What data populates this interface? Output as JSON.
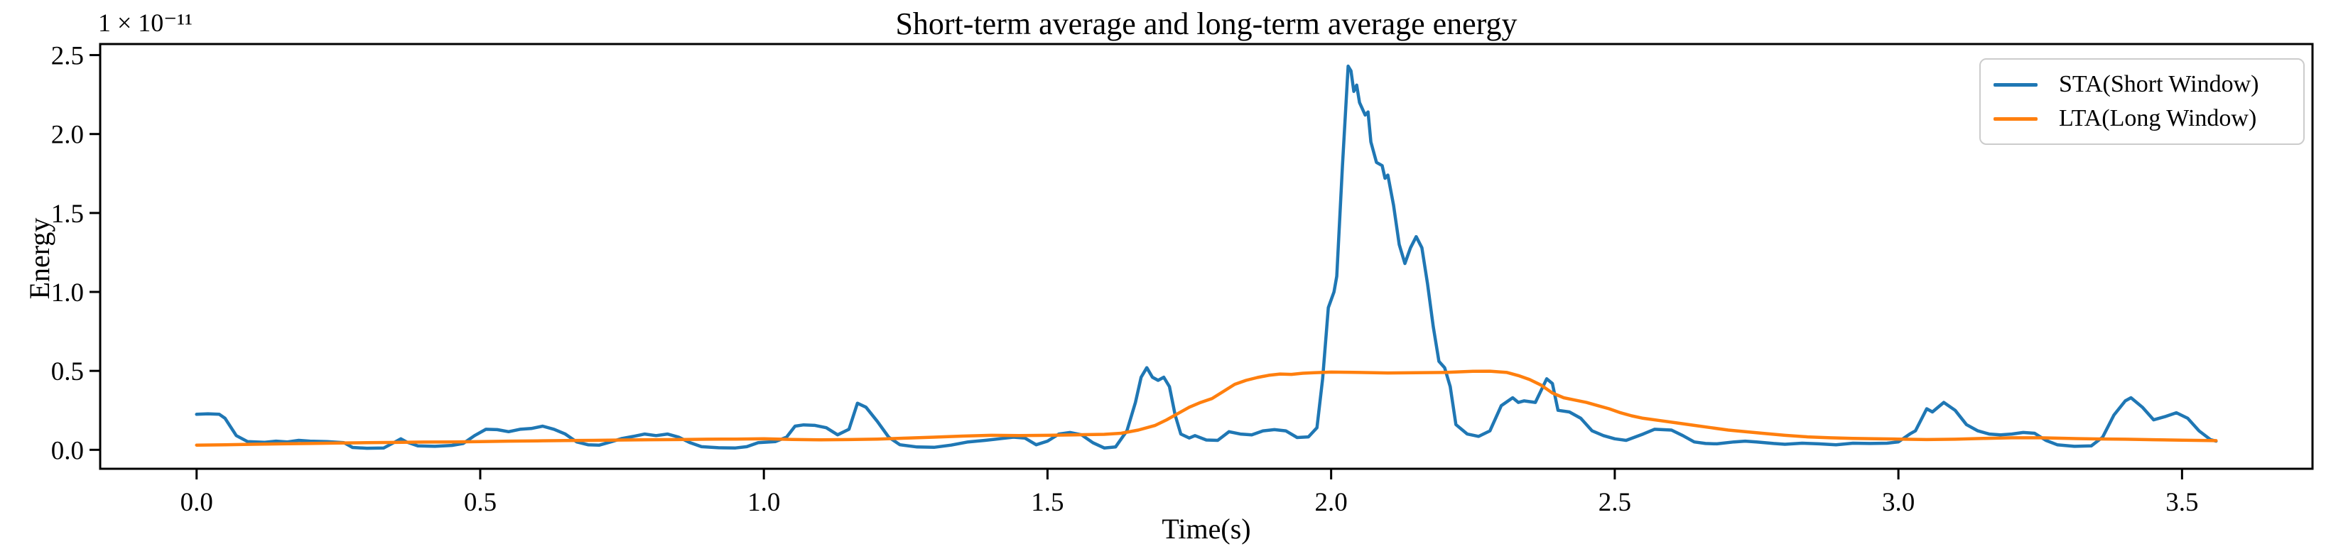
{
  "figure": {
    "background": "#ffffff",
    "spine_color": "#000000",
    "tick_label_color": "#000000"
  },
  "chart_data": {
    "type": "line",
    "title": "Short-term average and long-term average energy",
    "xlabel": "Time(s)",
    "ylabel": "Energy",
    "y_offset_text": "1 × 10⁻¹¹",
    "grid": false,
    "legend_position": "upper right",
    "xlim": [
      -0.17,
      3.73
    ],
    "ylim": [
      -0.12,
      2.57
    ],
    "x_tick_values": [
      0.0,
      0.5,
      1.0,
      1.5,
      2.0,
      2.5,
      3.0,
      3.5
    ],
    "x_tick_labels": [
      "0.0",
      "0.5",
      "1.0",
      "1.5",
      "2.0",
      "2.5",
      "3.0",
      "3.5"
    ],
    "y_tick_values": [
      0.0,
      0.5,
      1.0,
      1.5,
      2.0,
      2.5
    ],
    "y_tick_labels": [
      "0.0",
      "0.5",
      "1.0",
      "1.5",
      "2.0",
      "2.5"
    ],
    "series": [
      {
        "name": "STA(Short Window)",
        "color": "#1f77b4",
        "points": [
          [
            0.0,
            0.225
          ],
          [
            0.02,
            0.228
          ],
          [
            0.04,
            0.225
          ],
          [
            0.05,
            0.2
          ],
          [
            0.07,
            0.09
          ],
          [
            0.09,
            0.052
          ],
          [
            0.12,
            0.048
          ],
          [
            0.14,
            0.055
          ],
          [
            0.16,
            0.05
          ],
          [
            0.18,
            0.06
          ],
          [
            0.2,
            0.055
          ],
          [
            0.23,
            0.052
          ],
          [
            0.26,
            0.045
          ],
          [
            0.275,
            0.015
          ],
          [
            0.3,
            0.01
          ],
          [
            0.33,
            0.012
          ],
          [
            0.35,
            0.05
          ],
          [
            0.36,
            0.07
          ],
          [
            0.37,
            0.05
          ],
          [
            0.39,
            0.025
          ],
          [
            0.42,
            0.022
          ],
          [
            0.45,
            0.028
          ],
          [
            0.47,
            0.04
          ],
          [
            0.49,
            0.09
          ],
          [
            0.51,
            0.13
          ],
          [
            0.53,
            0.128
          ],
          [
            0.55,
            0.115
          ],
          [
            0.57,
            0.13
          ],
          [
            0.59,
            0.135
          ],
          [
            0.61,
            0.15
          ],
          [
            0.63,
            0.13
          ],
          [
            0.65,
            0.1
          ],
          [
            0.67,
            0.05
          ],
          [
            0.69,
            0.032
          ],
          [
            0.71,
            0.03
          ],
          [
            0.73,
            0.05
          ],
          [
            0.75,
            0.072
          ],
          [
            0.77,
            0.085
          ],
          [
            0.79,
            0.1
          ],
          [
            0.81,
            0.09
          ],
          [
            0.83,
            0.1
          ],
          [
            0.85,
            0.08
          ],
          [
            0.87,
            0.045
          ],
          [
            0.89,
            0.02
          ],
          [
            0.92,
            0.013
          ],
          [
            0.95,
            0.012
          ],
          [
            0.97,
            0.02
          ],
          [
            0.99,
            0.045
          ],
          [
            1.02,
            0.052
          ],
          [
            1.04,
            0.08
          ],
          [
            1.055,
            0.15
          ],
          [
            1.07,
            0.158
          ],
          [
            1.09,
            0.155
          ],
          [
            1.11,
            0.14
          ],
          [
            1.13,
            0.095
          ],
          [
            1.15,
            0.13
          ],
          [
            1.165,
            0.295
          ],
          [
            1.18,
            0.27
          ],
          [
            1.2,
            0.18
          ],
          [
            1.22,
            0.08
          ],
          [
            1.24,
            0.032
          ],
          [
            1.27,
            0.018
          ],
          [
            1.3,
            0.016
          ],
          [
            1.33,
            0.03
          ],
          [
            1.36,
            0.05
          ],
          [
            1.39,
            0.06
          ],
          [
            1.42,
            0.072
          ],
          [
            1.44,
            0.08
          ],
          [
            1.46,
            0.075
          ],
          [
            1.48,
            0.032
          ],
          [
            1.5,
            0.055
          ],
          [
            1.52,
            0.1
          ],
          [
            1.54,
            0.11
          ],
          [
            1.56,
            0.095
          ],
          [
            1.58,
            0.045
          ],
          [
            1.6,
            0.012
          ],
          [
            1.62,
            0.018
          ],
          [
            1.64,
            0.12
          ],
          [
            1.655,
            0.3
          ],
          [
            1.665,
            0.46
          ],
          [
            1.675,
            0.52
          ],
          [
            1.685,
            0.46
          ],
          [
            1.695,
            0.44
          ],
          [
            1.705,
            0.46
          ],
          [
            1.715,
            0.4
          ],
          [
            1.725,
            0.22
          ],
          [
            1.735,
            0.1
          ],
          [
            1.75,
            0.075
          ],
          [
            1.76,
            0.09
          ],
          [
            1.78,
            0.062
          ],
          [
            1.8,
            0.06
          ],
          [
            1.82,
            0.115
          ],
          [
            1.84,
            0.1
          ],
          [
            1.86,
            0.095
          ],
          [
            1.88,
            0.12
          ],
          [
            1.9,
            0.128
          ],
          [
            1.92,
            0.12
          ],
          [
            1.94,
            0.078
          ],
          [
            1.96,
            0.082
          ],
          [
            1.975,
            0.14
          ],
          [
            1.985,
            0.45
          ],
          [
            1.995,
            0.9
          ],
          [
            2.005,
            1.0
          ],
          [
            2.01,
            1.1
          ],
          [
            2.02,
            1.8
          ],
          [
            2.03,
            2.43
          ],
          [
            2.035,
            2.4
          ],
          [
            2.04,
            2.27
          ],
          [
            2.045,
            2.31
          ],
          [
            2.05,
            2.2
          ],
          [
            2.06,
            2.12
          ],
          [
            2.065,
            2.14
          ],
          [
            2.07,
            1.95
          ],
          [
            2.08,
            1.82
          ],
          [
            2.09,
            1.8
          ],
          [
            2.095,
            1.72
          ],
          [
            2.1,
            1.74
          ],
          [
            2.11,
            1.55
          ],
          [
            2.12,
            1.3
          ],
          [
            2.13,
            1.18
          ],
          [
            2.14,
            1.28
          ],
          [
            2.15,
            1.35
          ],
          [
            2.16,
            1.28
          ],
          [
            2.17,
            1.05
          ],
          [
            2.18,
            0.78
          ],
          [
            2.19,
            0.56
          ],
          [
            2.2,
            0.52
          ],
          [
            2.21,
            0.4
          ],
          [
            2.22,
            0.16
          ],
          [
            2.24,
            0.1
          ],
          [
            2.26,
            0.085
          ],
          [
            2.28,
            0.12
          ],
          [
            2.3,
            0.28
          ],
          [
            2.32,
            0.33
          ],
          [
            2.33,
            0.3
          ],
          [
            2.34,
            0.31
          ],
          [
            2.36,
            0.3
          ],
          [
            2.38,
            0.45
          ],
          [
            2.39,
            0.42
          ],
          [
            2.4,
            0.25
          ],
          [
            2.42,
            0.24
          ],
          [
            2.44,
            0.2
          ],
          [
            2.46,
            0.12
          ],
          [
            2.48,
            0.09
          ],
          [
            2.5,
            0.07
          ],
          [
            2.52,
            0.06
          ],
          [
            2.55,
            0.1
          ],
          [
            2.57,
            0.13
          ],
          [
            2.6,
            0.125
          ],
          [
            2.62,
            0.09
          ],
          [
            2.64,
            0.05
          ],
          [
            2.66,
            0.04
          ],
          [
            2.68,
            0.038
          ],
          [
            2.71,
            0.05
          ],
          [
            2.73,
            0.055
          ],
          [
            2.75,
            0.05
          ],
          [
            2.78,
            0.04
          ],
          [
            2.8,
            0.035
          ],
          [
            2.83,
            0.042
          ],
          [
            2.86,
            0.038
          ],
          [
            2.89,
            0.032
          ],
          [
            2.92,
            0.042
          ],
          [
            2.95,
            0.04
          ],
          [
            2.98,
            0.042
          ],
          [
            3.0,
            0.05
          ],
          [
            3.02,
            0.1
          ],
          [
            3.03,
            0.12
          ],
          [
            3.05,
            0.26
          ],
          [
            3.06,
            0.24
          ],
          [
            3.08,
            0.3
          ],
          [
            3.1,
            0.25
          ],
          [
            3.12,
            0.16
          ],
          [
            3.14,
            0.12
          ],
          [
            3.16,
            0.1
          ],
          [
            3.18,
            0.095
          ],
          [
            3.2,
            0.1
          ],
          [
            3.22,
            0.11
          ],
          [
            3.24,
            0.105
          ],
          [
            3.26,
            0.06
          ],
          [
            3.28,
            0.032
          ],
          [
            3.31,
            0.022
          ],
          [
            3.34,
            0.025
          ],
          [
            3.36,
            0.08
          ],
          [
            3.38,
            0.22
          ],
          [
            3.4,
            0.31
          ],
          [
            3.41,
            0.33
          ],
          [
            3.43,
            0.27
          ],
          [
            3.45,
            0.19
          ],
          [
            3.47,
            0.21
          ],
          [
            3.49,
            0.235
          ],
          [
            3.51,
            0.2
          ],
          [
            3.53,
            0.12
          ],
          [
            3.55,
            0.065
          ],
          [
            3.56,
            0.055
          ]
        ]
      },
      {
        "name": "LTA(Long Window)",
        "color": "#ff7f0e",
        "points": [
          [
            0.0,
            0.03
          ],
          [
            0.05,
            0.032
          ],
          [
            0.1,
            0.035
          ],
          [
            0.15,
            0.038
          ],
          [
            0.2,
            0.04
          ],
          [
            0.25,
            0.043
          ],
          [
            0.3,
            0.045
          ],
          [
            0.35,
            0.047
          ],
          [
            0.4,
            0.049
          ],
          [
            0.45,
            0.05
          ],
          [
            0.5,
            0.052
          ],
          [
            0.55,
            0.055
          ],
          [
            0.6,
            0.057
          ],
          [
            0.65,
            0.059
          ],
          [
            0.7,
            0.06
          ],
          [
            0.75,
            0.062
          ],
          [
            0.8,
            0.064
          ],
          [
            0.85,
            0.065
          ],
          [
            0.9,
            0.067
          ],
          [
            0.95,
            0.068
          ],
          [
            1.0,
            0.07
          ],
          [
            1.05,
            0.066
          ],
          [
            1.1,
            0.063
          ],
          [
            1.15,
            0.065
          ],
          [
            1.2,
            0.068
          ],
          [
            1.25,
            0.074
          ],
          [
            1.3,
            0.08
          ],
          [
            1.35,
            0.087
          ],
          [
            1.4,
            0.092
          ],
          [
            1.45,
            0.09
          ],
          [
            1.5,
            0.092
          ],
          [
            1.55,
            0.095
          ],
          [
            1.6,
            0.098
          ],
          [
            1.63,
            0.105
          ],
          [
            1.66,
            0.125
          ],
          [
            1.69,
            0.155
          ],
          [
            1.71,
            0.19
          ],
          [
            1.73,
            0.23
          ],
          [
            1.75,
            0.27
          ],
          [
            1.77,
            0.3
          ],
          [
            1.79,
            0.325
          ],
          [
            1.81,
            0.37
          ],
          [
            1.83,
            0.415
          ],
          [
            1.85,
            0.44
          ],
          [
            1.87,
            0.458
          ],
          [
            1.89,
            0.472
          ],
          [
            1.91,
            0.48
          ],
          [
            1.93,
            0.478
          ],
          [
            1.95,
            0.485
          ],
          [
            1.97,
            0.488
          ],
          [
            2.0,
            0.492
          ],
          [
            2.05,
            0.49
          ],
          [
            2.1,
            0.487
          ],
          [
            2.15,
            0.488
          ],
          [
            2.2,
            0.49
          ],
          [
            2.25,
            0.497
          ],
          [
            2.28,
            0.498
          ],
          [
            2.31,
            0.49
          ],
          [
            2.33,
            0.47
          ],
          [
            2.35,
            0.445
          ],
          [
            2.37,
            0.41
          ],
          [
            2.39,
            0.36
          ],
          [
            2.41,
            0.33
          ],
          [
            2.43,
            0.315
          ],
          [
            2.45,
            0.3
          ],
          [
            2.47,
            0.28
          ],
          [
            2.49,
            0.26
          ],
          [
            2.51,
            0.235
          ],
          [
            2.53,
            0.215
          ],
          [
            2.55,
            0.2
          ],
          [
            2.58,
            0.185
          ],
          [
            2.61,
            0.17
          ],
          [
            2.64,
            0.155
          ],
          [
            2.67,
            0.14
          ],
          [
            2.7,
            0.125
          ],
          [
            2.73,
            0.115
          ],
          [
            2.76,
            0.105
          ],
          [
            2.8,
            0.092
          ],
          [
            2.84,
            0.082
          ],
          [
            2.88,
            0.076
          ],
          [
            2.92,
            0.072
          ],
          [
            2.96,
            0.07
          ],
          [
            3.0,
            0.068
          ],
          [
            3.05,
            0.065
          ],
          [
            3.1,
            0.067
          ],
          [
            3.15,
            0.072
          ],
          [
            3.2,
            0.076
          ],
          [
            3.25,
            0.076
          ],
          [
            3.3,
            0.072
          ],
          [
            3.35,
            0.069
          ],
          [
            3.4,
            0.067
          ],
          [
            3.45,
            0.064
          ],
          [
            3.5,
            0.061
          ],
          [
            3.56,
            0.058
          ]
        ]
      }
    ]
  },
  "legend": {
    "items": [
      {
        "label": "STA(Short Window)",
        "color": "#1f77b4"
      },
      {
        "label": "LTA(Long Window)",
        "color": "#ff7f0e"
      }
    ]
  }
}
